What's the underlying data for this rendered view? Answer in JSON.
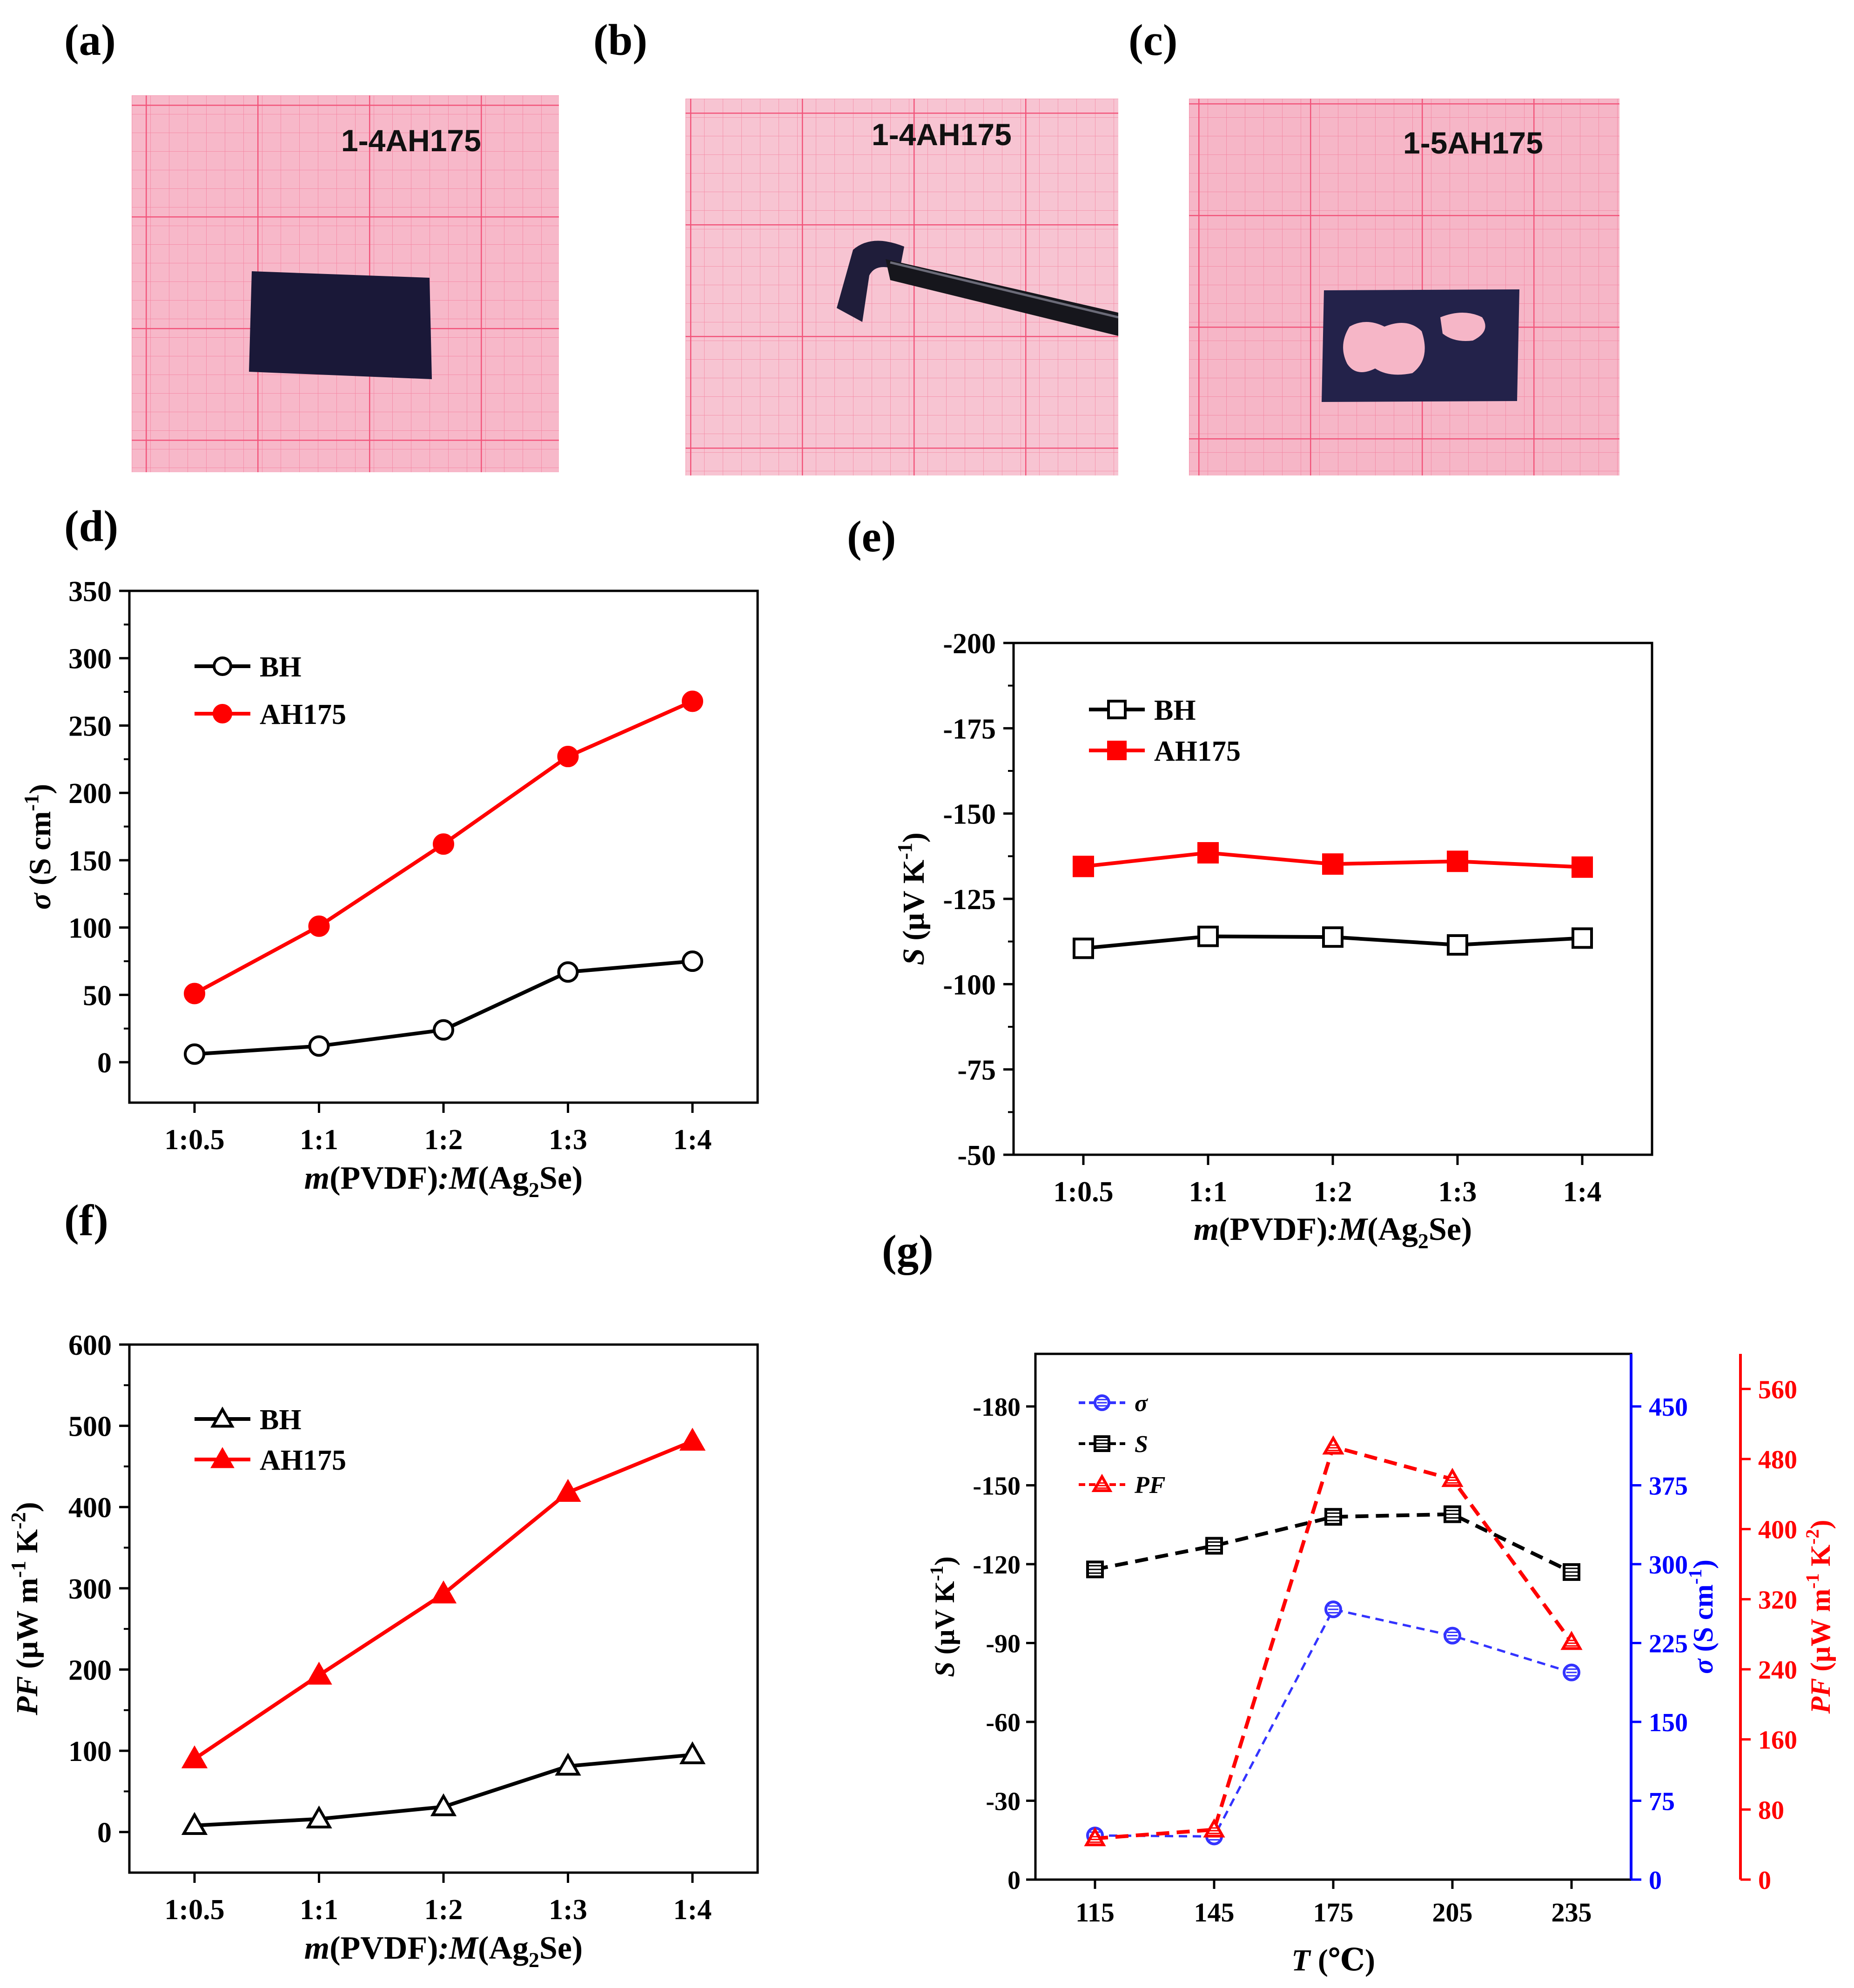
{
  "panel_labels": {
    "a": "(a)",
    "b": "(b)",
    "c": "(c)",
    "d": "(d)",
    "e": "(e)",
    "f": "(f)",
    "g": "(g)"
  },
  "photos": {
    "a": {
      "label": "1-4AH175",
      "grid_color": "#f2547a",
      "paper_color": "#f7b8c9",
      "sample_color": "#1a1838",
      "depicts": "flat-sample"
    },
    "b": {
      "label": "1-4AH175",
      "grid_color": "#f2547a",
      "paper_color": "#f7c4d2",
      "sample_color": "#1f1d3a",
      "depicts": "bent-sample-with-tweezers"
    },
    "c": {
      "label": "1-5AH175",
      "grid_color": "#f2547a",
      "paper_color": "#f6b6c7",
      "sample_color": "#23224a",
      "depicts": "cracked-sample"
    }
  },
  "chart_data": [
    {
      "id": "d",
      "type": "line",
      "categories": [
        "1:0.5",
        "1:1",
        "1:2",
        "1:3",
        "1:4"
      ],
      "series": [
        {
          "name": "BH",
          "values": [
            6,
            12,
            24,
            67,
            75
          ],
          "color": "#000000",
          "marker": "circle-open"
        },
        {
          "name": "AH175",
          "values": [
            51,
            101,
            162,
            227,
            268
          ],
          "color": "#ff0000",
          "marker": "circle-filled"
        }
      ],
      "ylim": [
        -30,
        350
      ],
      "yticks": [
        "0",
        "50",
        "100",
        "150",
        "200",
        "250",
        "300",
        "350"
      ],
      "ytick_values": [
        0,
        50,
        100,
        150,
        200,
        250,
        300,
        350
      ],
      "ylabel_sym": "σ",
      "ylabel_unit": "(S cm",
      "ylabel_sup": "-1",
      "ylabel_close": ")",
      "xlabel": {
        "m": "m",
        "pvdf": "(PVDF)",
        "colon_m": ":M",
        "ag": "(Ag",
        "sub": "2",
        "se": "Se)"
      },
      "legend_position": "top-left"
    },
    {
      "id": "e",
      "type": "line",
      "categories": [
        "1:0.5",
        "1:1",
        "1:2",
        "1:3",
        "1:4"
      ],
      "series": [
        {
          "name": "BH",
          "values": [
            -110.5,
            -114,
            -113.8,
            -111.5,
            -113.5
          ],
          "color": "#000000",
          "marker": "square-open"
        },
        {
          "name": "AH175",
          "values": [
            -134.5,
            -138.5,
            -135.2,
            -136,
            -134.3
          ],
          "color": "#ff0000",
          "marker": "square-filled"
        }
      ],
      "ylim": [
        -50,
        -200
      ],
      "yticks": [
        "-50",
        "-75",
        "-100",
        "-125",
        "-150",
        "-175",
        "-200"
      ],
      "ytick_values": [
        -50,
        -75,
        -100,
        -125,
        -150,
        -175,
        -200
      ],
      "ylabel_sym": "S",
      "ylabel_unit": "(μV K",
      "ylabel_sup": "-1",
      "ylabel_close": ")",
      "xlabel": {
        "m": "m",
        "pvdf": "(PVDF)",
        "colon_m": ":M",
        "ag": "(Ag",
        "sub": "2",
        "se": "Se)"
      },
      "legend_position": "top-left"
    },
    {
      "id": "f",
      "type": "line",
      "categories": [
        "1:0.5",
        "1:1",
        "1:2",
        "1:3",
        "1:4"
      ],
      "series": [
        {
          "name": "BH",
          "values": [
            8,
            16,
            31,
            81,
            95
          ],
          "color": "#000000",
          "marker": "triangle-open"
        },
        {
          "name": "AH175",
          "values": [
            90,
            193,
            293,
            418,
            481
          ],
          "color": "#ff0000",
          "marker": "triangle-filled"
        }
      ],
      "ylim": [
        -50,
        600
      ],
      "yticks": [
        "0",
        "100",
        "200",
        "300",
        "400",
        "500",
        "600"
      ],
      "ytick_values": [
        0,
        100,
        200,
        300,
        400,
        500,
        600
      ],
      "ylabel_sym": "PF",
      "ylabel_unit": "(μW m",
      "ylabel_sup": "-1",
      "ylabel_mid": " K",
      "ylabel_sup2": "-2",
      "ylabel_close": ")",
      "xlabel": {
        "m": "m",
        "pvdf": "(PVDF)",
        "colon_m": ":M",
        "ag": "(Ag",
        "sub": "2",
        "se": "Se)"
      },
      "legend_position": "top-left"
    },
    {
      "id": "g",
      "type": "line",
      "x": [
        115,
        145,
        175,
        205,
        235
      ],
      "xticks": [
        "115",
        "145",
        "175",
        "205",
        "235"
      ],
      "xlabel_sym": "T",
      "xlabel_unit": "(℃)",
      "series": [
        {
          "name": "σ",
          "axis": "sigma",
          "values": [
            42,
            41,
            257,
            232,
            197
          ],
          "color": "#3333ff",
          "marker": "circle-hatched",
          "dash": true
        },
        {
          "name": "S",
          "axis": "S",
          "values": [
            -118,
            -127,
            -138,
            -139,
            -117
          ],
          "color": "#000000",
          "marker": "square-hatched",
          "dash": true
        },
        {
          "name": "PF",
          "axis": "PF",
          "values": [
            47,
            57,
            494,
            457,
            271
          ],
          "color": "#ff0000",
          "marker": "triangle-hatched",
          "dash": true
        }
      ],
      "axes": {
        "S": {
          "lim": [
            0,
            -200
          ],
          "ticks": [
            "0",
            "-30",
            "-60",
            "-90",
            "-120",
            "-150",
            "-180"
          ],
          "tick_values": [
            0,
            -30,
            -60,
            -90,
            -120,
            -150,
            -180
          ],
          "label_sym": "S",
          "label_unit": "(μV K",
          "label_sup": "-1",
          "label_close": ")",
          "color": "#000000"
        },
        "sigma": {
          "lim": [
            0,
            500
          ],
          "ticks": [
            "0",
            "75",
            "150",
            "225",
            "300",
            "375",
            "450"
          ],
          "tick_values": [
            0,
            75,
            150,
            225,
            300,
            375,
            450
          ],
          "label_sym": "σ",
          "label_unit": "(S cm",
          "label_sup": "-1",
          "label_close": ")",
          "color": "#0000ff"
        },
        "PF": {
          "lim": [
            0,
            600
          ],
          "ticks": [
            "0",
            "80",
            "160",
            "240",
            "320",
            "400",
            "480",
            "560"
          ],
          "tick_values": [
            0,
            80,
            160,
            240,
            320,
            400,
            480,
            560
          ],
          "label_sym": "PF",
          "label_unit": "(μW m",
          "label_sup": "-1",
          "label_mid": " K",
          "label_sup2": "-2",
          "label_close": ")",
          "color": "#ff0000"
        }
      },
      "legend_position": "top-left"
    }
  ]
}
